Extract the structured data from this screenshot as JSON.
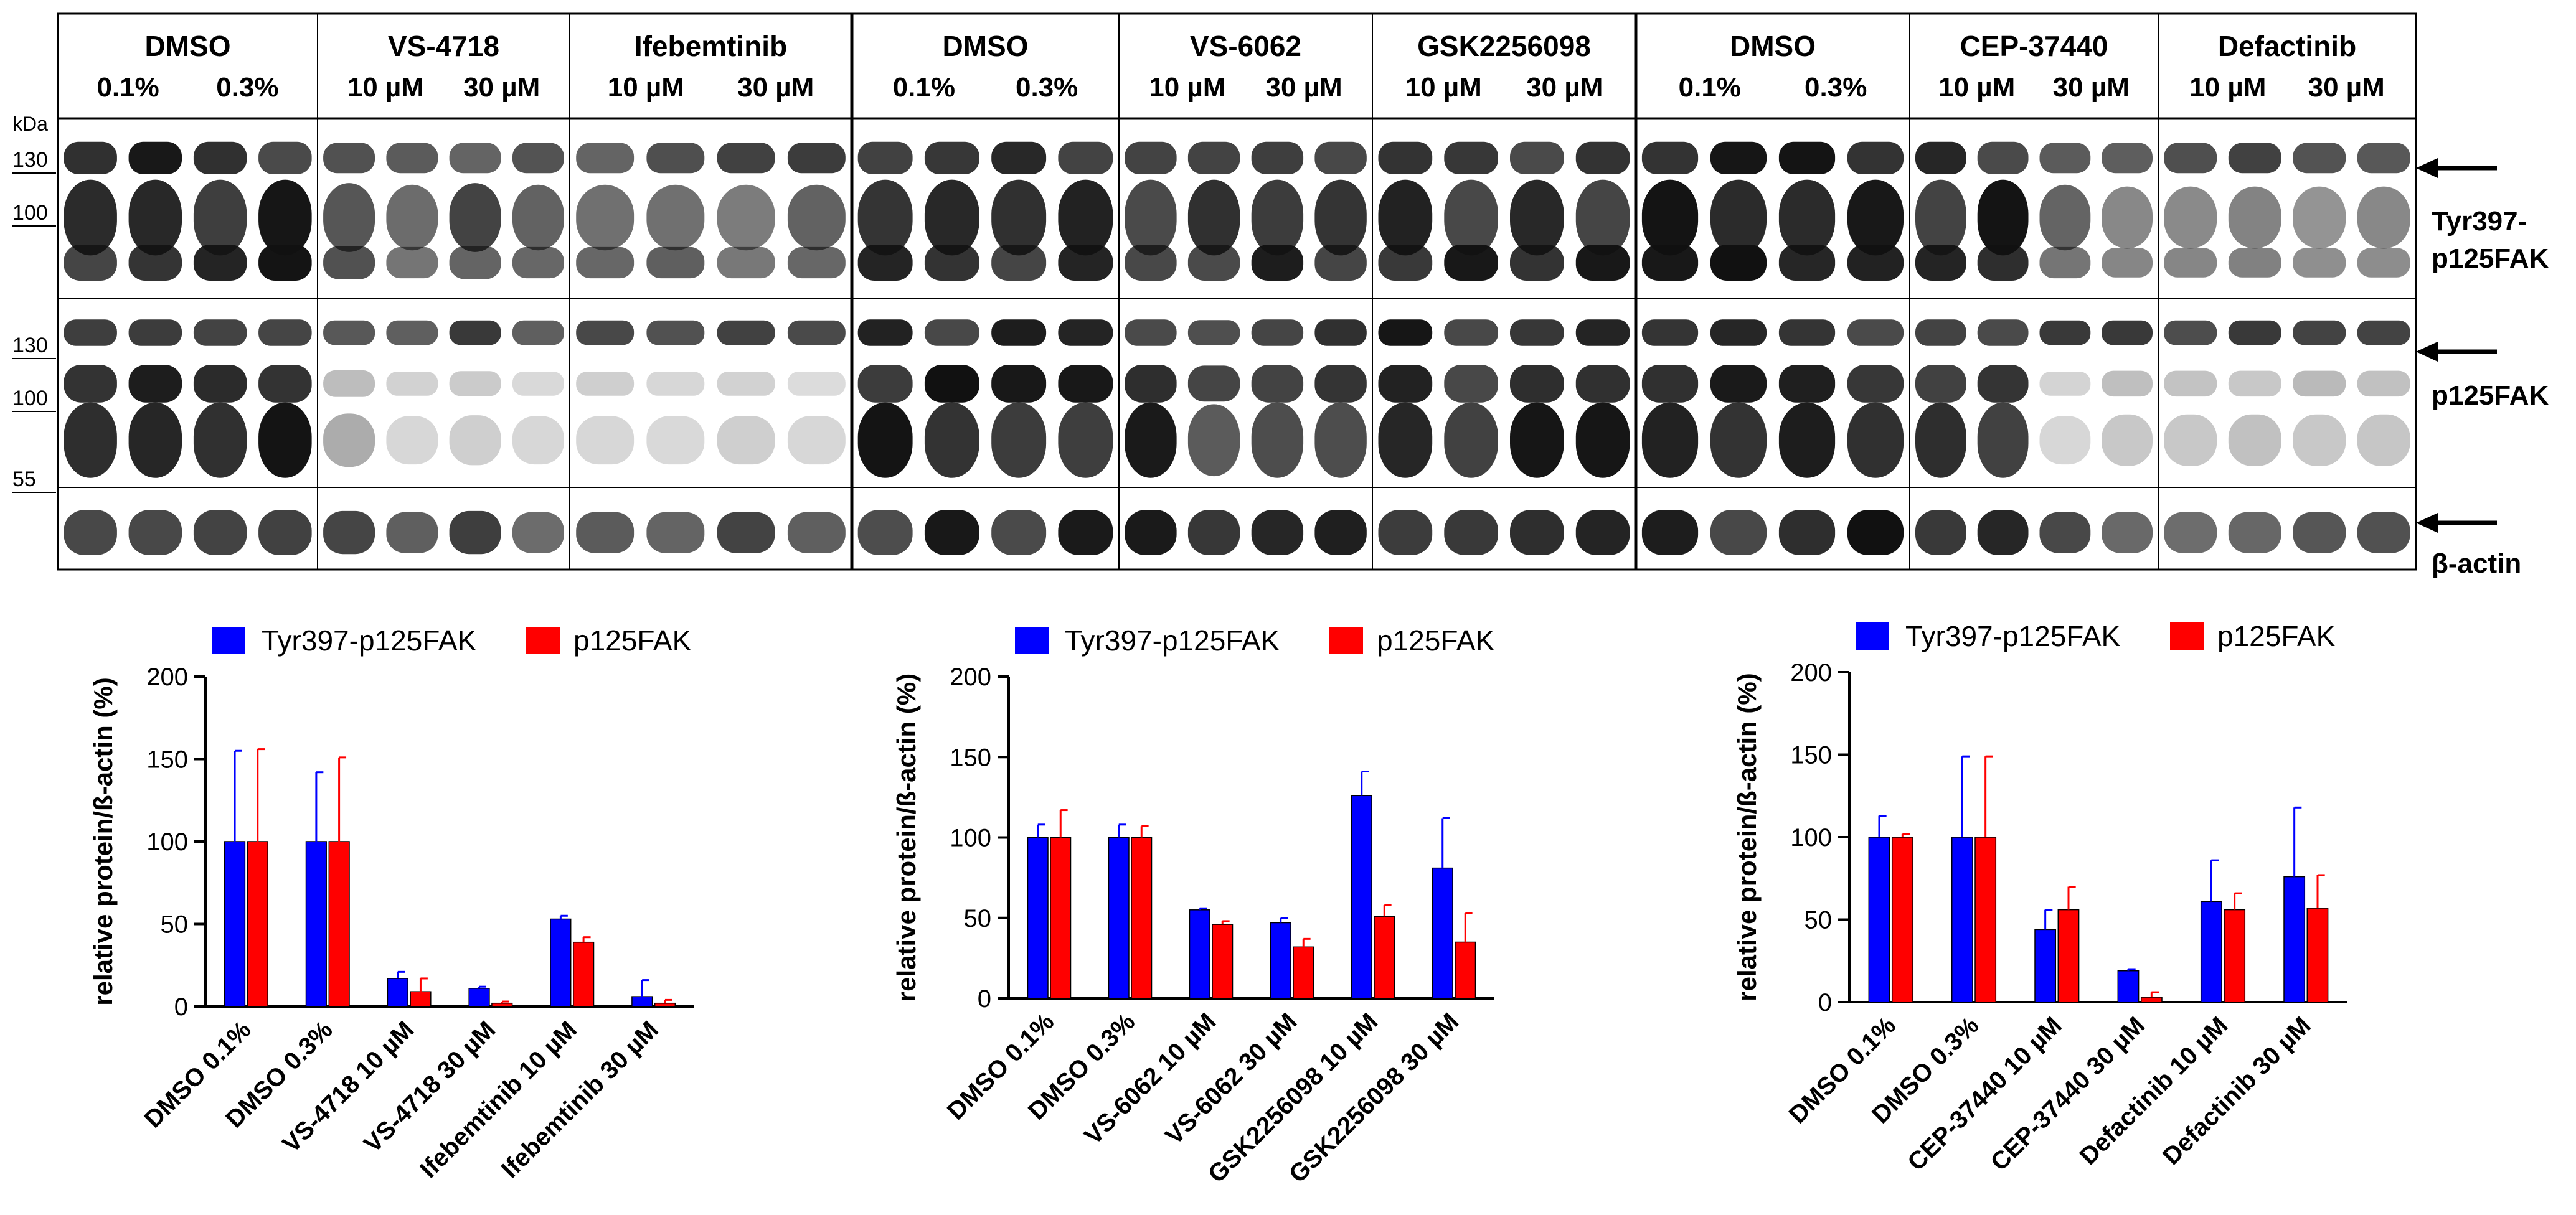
{
  "blot": {
    "kda_label": "kDa",
    "markers": [
      "130",
      "100",
      "130",
      "100",
      "55"
    ],
    "targets": [
      {
        "name": "Tyr397-",
        "name2": "p125FAK"
      },
      {
        "name": "p125FAK"
      },
      {
        "name": "β-actin"
      }
    ],
    "panels": [
      {
        "groups": [
          {
            "name": "DMSO",
            "conc": [
              "0.1%",
              "0.3%"
            ]
          },
          {
            "name": "VS-4718",
            "conc": [
              "10 µM",
              "30 µM"
            ]
          },
          {
            "name": "Ifebemtinib",
            "conc": [
              "10 µM",
              "30 µM"
            ]
          }
        ]
      },
      {
        "groups": [
          {
            "name": "DMSO",
            "conc": [
              "0.1%",
              "0.3%"
            ]
          },
          {
            "name": "VS-6062",
            "conc": [
              "10 µM",
              "30 µM"
            ]
          },
          {
            "name": "GSK2256098",
            "conc": [
              "10 µM",
              "30 µM"
            ]
          }
        ]
      },
      {
        "groups": [
          {
            "name": "DMSO",
            "conc": [
              "0.1%",
              "0.3%"
            ]
          },
          {
            "name": "CEP-37440",
            "conc": [
              "10 µM",
              "30 µM"
            ]
          },
          {
            "name": "Defactinib",
            "conc": [
              "10 µM",
              "30 µM"
            ]
          }
        ]
      }
    ]
  },
  "colors": {
    "series1": "#0000ff",
    "series2": "#ff0000",
    "axis": "#000000"
  },
  "chart_data": [
    {
      "type": "bar",
      "ylabel": "relative protein/ß-actin (%)",
      "ylim": [
        0,
        200
      ],
      "yticks": [
        0,
        50,
        100,
        150,
        200
      ],
      "legend": "top",
      "categories": [
        "DMSO 0.1%",
        "DMSO 0.3%",
        "VS-4718 10 µM",
        "VS-4718 30 µM",
        "Ifebemtinib 10 µM",
        "Ifebemtinib 30 µM"
      ],
      "series": [
        {
          "name": "Tyr397-p125FAK",
          "values": [
            100,
            100,
            17,
            11,
            53,
            6
          ],
          "errors": [
            55,
            42,
            4,
            1,
            2,
            10
          ]
        },
        {
          "name": "p125FAK",
          "values": [
            100,
            100,
            9,
            2,
            39,
            2
          ],
          "errors": [
            56,
            51,
            8,
            1,
            3,
            2
          ]
        }
      ]
    },
    {
      "type": "bar",
      "ylabel": "relative protein/ß-actin (%)",
      "ylim": [
        0,
        200
      ],
      "yticks": [
        0,
        50,
        100,
        150,
        200
      ],
      "legend": "top",
      "categories": [
        "DMSO 0.1%",
        "DMSO 0.3%",
        "VS-6062 10 µM",
        "VS-6062 30 µM",
        "GSK2256098 10 µM",
        "GSK2256098 30 µM"
      ],
      "series": [
        {
          "name": "Tyr397-p125FAK",
          "values": [
            100,
            100,
            55,
            47,
            126,
            81
          ],
          "errors": [
            8,
            8,
            1,
            3,
            15,
            31
          ]
        },
        {
          "name": "p125FAK",
          "values": [
            100,
            100,
            46,
            32,
            51,
            35
          ],
          "errors": [
            17,
            7,
            2,
            5,
            7,
            18
          ]
        }
      ]
    },
    {
      "type": "bar",
      "ylabel": "relative protein/ß-actin (%)",
      "ylim": [
        0,
        200
      ],
      "yticks": [
        0,
        50,
        100,
        150,
        200
      ],
      "legend": "top",
      "categories": [
        "DMSO 0.1%",
        "DMSO 0.3%",
        "CEP-37440 10 µM",
        "CEP-37440 30 µM",
        "Defactinib 10 µM",
        "Defactinib 30 µM"
      ],
      "series": [
        {
          "name": "Tyr397-p125FAK",
          "values": [
            100,
            100,
            44,
            19,
            61,
            76
          ],
          "errors": [
            13,
            49,
            12,
            1,
            25,
            42
          ]
        },
        {
          "name": "p125FAK",
          "values": [
            100,
            100,
            56,
            3,
            56,
            57
          ],
          "errors": [
            2,
            49,
            14,
            3,
            10,
            20
          ]
        }
      ]
    }
  ]
}
